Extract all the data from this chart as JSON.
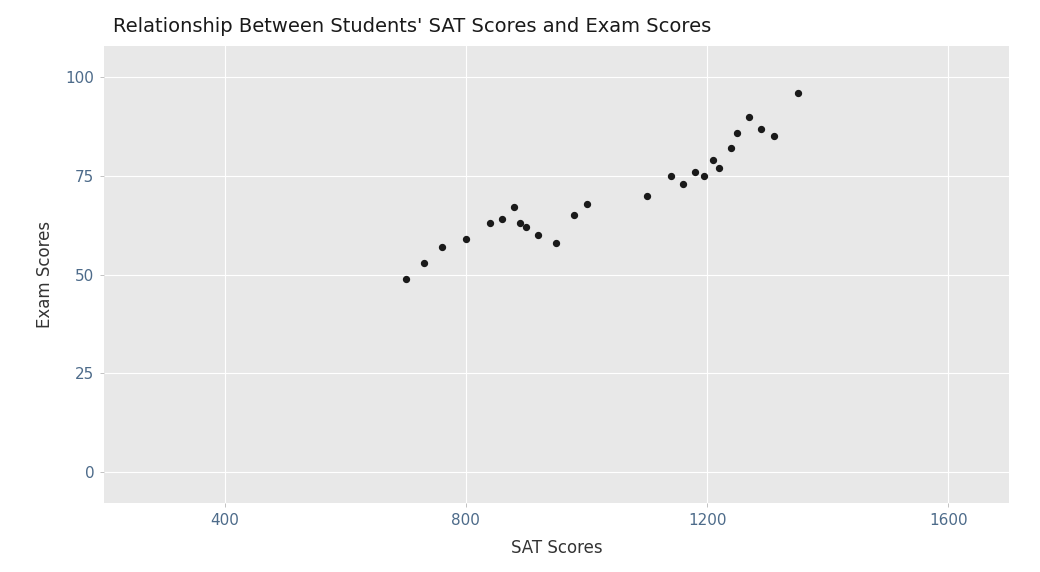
{
  "title": "Relationship Between Students' SAT Scores and Exam Scores",
  "xlabel": "SAT Scores",
  "ylabel": "Exam Scores",
  "xlim": [
    200,
    1700
  ],
  "ylim": [
    -8,
    108
  ],
  "xticks": [
    400,
    800,
    1200,
    1600
  ],
  "yticks": [
    0,
    25,
    50,
    75,
    100
  ],
  "x": [
    700,
    730,
    760,
    800,
    840,
    860,
    880,
    890,
    900,
    920,
    950,
    980,
    1000,
    1100,
    1140,
    1160,
    1180,
    1195,
    1210,
    1220,
    1240,
    1250,
    1270,
    1290,
    1310,
    1350
  ],
  "y": [
    49,
    53,
    57,
    59,
    63,
    64,
    67,
    63,
    62,
    60,
    58,
    65,
    68,
    70,
    75,
    73,
    76,
    75,
    79,
    77,
    82,
    86,
    90,
    87,
    85,
    96
  ],
  "point_color": "#1a1a1a",
  "point_size": 18,
  "plot_bg_color": "#e8e8e8",
  "fig_bg_color": "#ffffff",
  "grid_color": "#ffffff",
  "tick_label_color": "#4d6b8a",
  "axis_label_color": "#333333",
  "title_color": "#1a1a1a",
  "title_fontsize": 14,
  "label_fontsize": 12,
  "tick_fontsize": 11
}
